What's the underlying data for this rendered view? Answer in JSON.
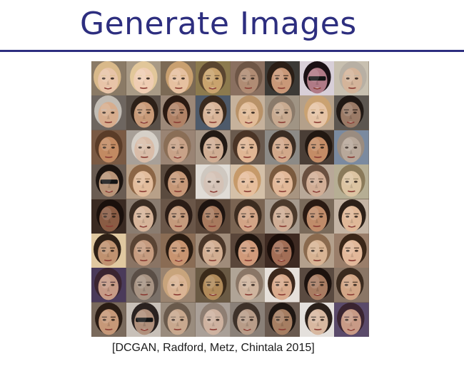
{
  "slide": {
    "title": "Generate Images",
    "citation": "[DCGAN, Radford, Metz, Chintala 2015]"
  },
  "face_grid": {
    "rows": 8,
    "columns": 8,
    "faces": [
      {
        "skin": "#e8c4a8",
        "hair": "#d9b98a",
        "bg": "#8a7a66",
        "shades": false
      },
      {
        "skin": "#efcdb3",
        "hair": "#e2c79a",
        "bg": "#a89a86",
        "shades": false
      },
      {
        "skin": "#e6c0a0",
        "hair": "#c9a070",
        "bg": "#7c6a55",
        "shades": false
      },
      {
        "skin": "#c9a36e",
        "hair": "#5a4530",
        "bg": "#8c7a4e",
        "shades": false
      },
      {
        "skin": "#b08c74",
        "hair": "#6e5646",
        "bg": "#8a7060",
        "shades": false
      },
      {
        "skin": "#c99878",
        "hair": "#2a1e16",
        "bg": "#3c3a36",
        "shades": false
      },
      {
        "skin": "#b07a86",
        "hair": "#1a1014",
        "bg": "#d8cfd8",
        "shades": true
      },
      {
        "skin": "#d4b49a",
        "hair": "#b8b0a4",
        "bg": "#c8c0b0",
        "shades": false
      },
      {
        "skin": "#d7ad8e",
        "hair": "#c2bcb4",
        "bg": "#6e6660",
        "shades": false
      },
      {
        "skin": "#c89a78",
        "hair": "#2c2018",
        "bg": "#5a5048",
        "shades": false
      },
      {
        "skin": "#b08266",
        "hair": "#2a1a12",
        "bg": "#9c8878",
        "shades": false
      },
      {
        "skin": "#d8b498",
        "hair": "#3a2a1e",
        "bg": "#4e5a6a",
        "shades": false
      },
      {
        "skin": "#e2bc98",
        "hair": "#b89268",
        "bg": "#c6b29c",
        "shades": false
      },
      {
        "skin": "#c8aa90",
        "hair": "#8a7a6a",
        "bg": "#a09484",
        "shades": false
      },
      {
        "skin": "#e6c4a6",
        "hair": "#caa272",
        "bg": "#b4a08a",
        "shades": false
      },
      {
        "skin": "#9a7a66",
        "hair": "#201814",
        "bg": "#5c5650",
        "shades": false
      },
      {
        "skin": "#c28a62",
        "hair": "#5a3c28",
        "bg": "#7a5a44",
        "shades": false
      },
      {
        "skin": "#d9bca8",
        "hair": "#d6d0c8",
        "bg": "#a8a098",
        "shades": false
      },
      {
        "skin": "#c8a288",
        "hair": "#8a6e56",
        "bg": "#9a8474",
        "shades": false
      },
      {
        "skin": "#d0ae94",
        "hair": "#221a14",
        "bg": "#a69686",
        "shades": false
      },
      {
        "skin": "#e0b694",
        "hair": "#4a3426",
        "bg": "#6a5a4e",
        "shades": false
      },
      {
        "skin": "#d2a88a",
        "hair": "#3a2c22",
        "bg": "#8c8a86",
        "shades": false
      },
      {
        "skin": "#c48c66",
        "hair": "#221812",
        "bg": "#4a3e36",
        "shades": false
      },
      {
        "skin": "#b8a89a",
        "hair": "#9a8c80",
        "bg": "#7a8aa0",
        "shades": false
      },
      {
        "skin": "#b89478",
        "hair": "#1c1410",
        "bg": "#6a5c52",
        "shades": true
      },
      {
        "skin": "#e2bc9c",
        "hair": "#8c6646",
        "bg": "#b8a088",
        "shades": false
      },
      {
        "skin": "#c69878",
        "hair": "#2a1c14",
        "bg": "#5a4a3e",
        "shades": false
      },
      {
        "skin": "#d4c2b6",
        "hair": "#cfc8c0",
        "bg": "#e0dcd6",
        "shades": false
      },
      {
        "skin": "#e6be9c",
        "hair": "#c69a6a",
        "bg": "#d4c0a8",
        "shades": false
      },
      {
        "skin": "#e2b898",
        "hair": "#7a5a3e",
        "bg": "#a89480",
        "shades": false
      },
      {
        "skin": "#d2ae96",
        "hair": "#6a5040",
        "bg": "#b8a898",
        "shades": false
      },
      {
        "skin": "#dcc4a2",
        "hair": "#8a7a5a",
        "bg": "#b6ae94",
        "shades": false
      },
      {
        "skin": "#8a5c44",
        "hair": "#1a100c",
        "bg": "#3a2a22",
        "shades": false
      },
      {
        "skin": "#d6b49a",
        "hair": "#3a2c22",
        "bg": "#8a7c70",
        "shades": false
      },
      {
        "skin": "#c49a7c",
        "hair": "#2a1c16",
        "bg": "#6a5648",
        "shades": false
      },
      {
        "skin": "#a87a5e",
        "hair": "#1e1410",
        "bg": "#5a4638",
        "shades": false
      },
      {
        "skin": "#d2a486",
        "hair": "#3c2c20",
        "bg": "#7a6452",
        "shades": false
      },
      {
        "skin": "#cfae96",
        "hair": "#4c3a2c",
        "bg": "#a69a8e",
        "shades": false
      },
      {
        "skin": "#c08c6a",
        "hair": "#2a1a12",
        "bg": "#7a6a5a",
        "shades": false
      },
      {
        "skin": "#e0b898",
        "hair": "#2c2018",
        "bg": "#c4b4a4",
        "shades": false
      },
      {
        "skin": "#c09270",
        "hair": "#2e2016",
        "bg": "#e0c8a0",
        "shades": false
      },
      {
        "skin": "#c69c80",
        "hair": "#5a4434",
        "bg": "#8a7464",
        "shades": false
      },
      {
        "skin": "#c89470",
        "hair": "#2a1c12",
        "bg": "#8a6c54",
        "shades": false
      },
      {
        "skin": "#d2ae92",
        "hair": "#4a3628",
        "bg": "#a08c7a",
        "shades": false
      },
      {
        "skin": "#d09a7a",
        "hair": "#1e140e",
        "bg": "#5a463a",
        "shades": false
      },
      {
        "skin": "#a26e56",
        "hair": "#1a0e0a",
        "bg": "#3e2a22",
        "shades": false
      },
      {
        "skin": "#d8b494",
        "hair": "#8a6a4e",
        "bg": "#b4a08c",
        "shades": false
      },
      {
        "skin": "#e2b89a",
        "hair": "#3a2618",
        "bg": "#9a7e6a",
        "shades": false
      },
      {
        "skin": "#c69a86",
        "hair": "#3a2430",
        "bg": "#4a3a5a",
        "shades": false
      },
      {
        "skin": "#a89484",
        "hair": "#5a4e46",
        "bg": "#7a7068",
        "shades": false
      },
      {
        "skin": "#dab494",
        "hair": "#c8a47c",
        "bg": "#9a8470",
        "shades": false
      },
      {
        "skin": "#b08a5a",
        "hair": "#3a2a1a",
        "bg": "#6a5a44",
        "shades": false
      },
      {
        "skin": "#cfb49e",
        "hair": "#8a7666",
        "bg": "#b0a496",
        "shades": false
      },
      {
        "skin": "#d8aa8c",
        "hair": "#3c281c",
        "bg": "#e6e0da",
        "shades": false
      },
      {
        "skin": "#a87c62",
        "hair": "#1c120e",
        "bg": "#5a4a40",
        "shades": false
      },
      {
        "skin": "#d2a686",
        "hair": "#3a2a1e",
        "bg": "#8a7666",
        "shades": false
      },
      {
        "skin": "#c69878",
        "hair": "#2a1c14",
        "bg": "#7a6a5c",
        "shades": false
      },
      {
        "skin": "#b0907c",
        "hair": "#2a2220",
        "bg": "#c8c0b8",
        "shades": true
      },
      {
        "skin": "#c8a88e",
        "hair": "#6a5a4c",
        "bg": "#9a8c7e",
        "shades": false
      },
      {
        "skin": "#ceb2a0",
        "hair": "#8e7e72",
        "bg": "#aaa098",
        "shades": false
      },
      {
        "skin": "#b89c88",
        "hair": "#3e322a",
        "bg": "#8a8078",
        "shades": false
      },
      {
        "skin": "#a67e62",
        "hair": "#1e1612",
        "bg": "#6a5a50",
        "shades": false
      },
      {
        "skin": "#d8b8a0",
        "hair": "#2a201a",
        "bg": "#e4e0dc",
        "shades": false
      },
      {
        "skin": "#c89a86",
        "hair": "#3a2430",
        "bg": "#5a4a6a",
        "shades": false
      }
    ]
  }
}
